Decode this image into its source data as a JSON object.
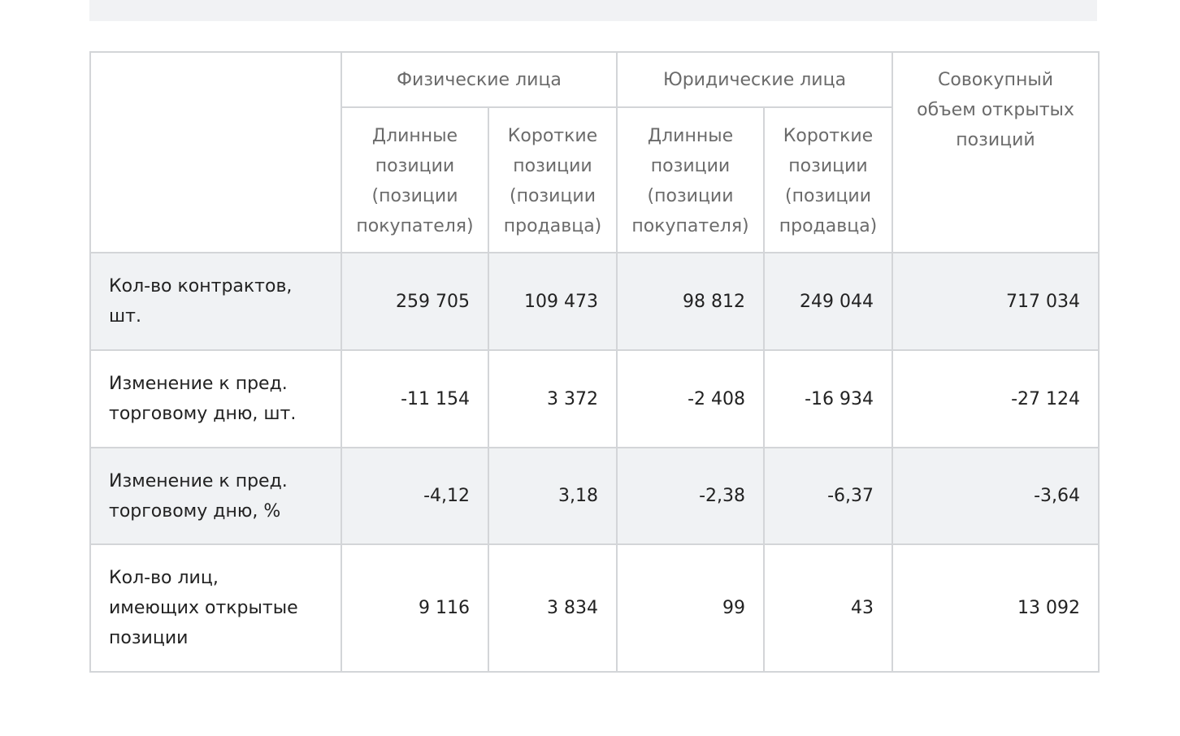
{
  "table": {
    "header_groups": [
      "Физические лица",
      "Юридические лица",
      "Совокупный объем открытых позиций"
    ],
    "subheaders": [
      "Длинные позиции (позиции покупателя)",
      "Короткие позиции (позиции продавца)",
      "Длинные позиции (позиции покупателя)",
      "Короткие позиции (позиции продавца)"
    ],
    "rows": [
      {
        "label": "Кол-во контрактов, шт.",
        "cells": [
          "259 705",
          "109 473",
          "98 812",
          "249 044",
          "717 034"
        ]
      },
      {
        "label": "Изменение к пред. торговому дню, шт.",
        "cells": [
          "-11 154",
          "3 372",
          "-2 408",
          "-16 934",
          "-27 124"
        ]
      },
      {
        "label": "Изменение к пред. торговому дню, %",
        "cells": [
          "-4,12",
          "3,18",
          "-2,38",
          "-6,37",
          "-3,64"
        ]
      },
      {
        "label": "Кол-во лиц, имеющих открытые позиции",
        "cells": [
          "9 116",
          "3 834",
          "99",
          "43",
          "13 092"
        ]
      }
    ]
  }
}
